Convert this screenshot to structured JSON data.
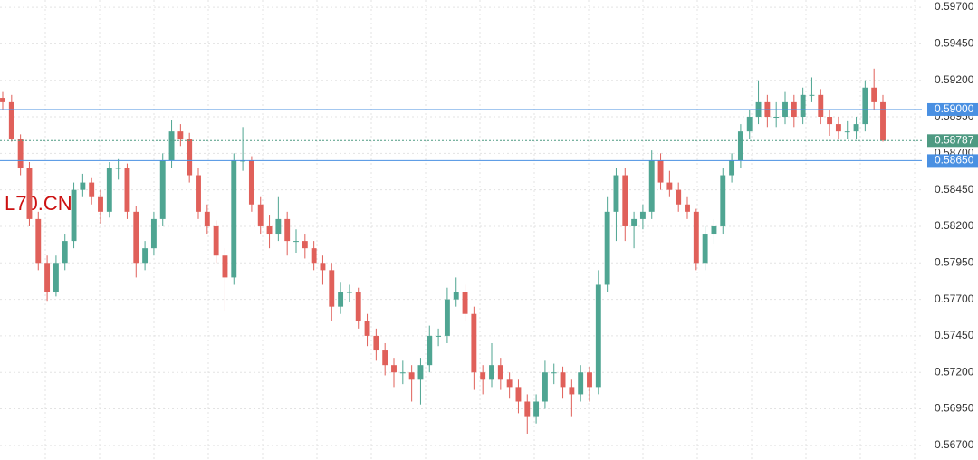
{
  "chart_data": {
    "type": "candlestick",
    "title": "L70.CN",
    "ylim": [
      0.566,
      0.5975
    ],
    "yticks": [
      {
        "value": 0.567,
        "label": "0.56700"
      },
      {
        "value": 0.5695,
        "label": "0.56950"
      },
      {
        "value": 0.572,
        "label": "0.57200"
      },
      {
        "value": 0.5745,
        "label": "0.57450"
      },
      {
        "value": 0.577,
        "label": "0.57700"
      },
      {
        "value": 0.5795,
        "label": "0.57950"
      },
      {
        "value": 0.582,
        "label": "0.58200"
      },
      {
        "value": 0.5845,
        "label": "0.58450"
      },
      {
        "value": 0.587,
        "label": "0.58700"
      },
      {
        "value": 0.5895,
        "label": "0.58950"
      },
      {
        "value": 0.592,
        "label": "0.59200"
      },
      {
        "value": 0.5945,
        "label": "0.59450"
      },
      {
        "value": 0.597,
        "label": "0.59700"
      }
    ],
    "grid": true,
    "up_color": "#4fa592",
    "down_color": "#e0605a",
    "title_color": "#cc1111",
    "price_lines": [
      {
        "value": 0.59,
        "label": "0.59000",
        "color": "#4a90e2"
      },
      {
        "value": 0.5865,
        "label": "0.58650",
        "color": "#4a90e2"
      }
    ],
    "last_price": {
      "value": 0.58787,
      "label": "0.58787",
      "color": "#4e9a82"
    },
    "ohlc": [
      [
        0.5908,
        0.5912,
        0.59,
        0.5905
      ],
      [
        0.5905,
        0.591,
        0.5878,
        0.588
      ],
      [
        0.588,
        0.5883,
        0.5855,
        0.586
      ],
      [
        0.586,
        0.5864,
        0.582,
        0.5825
      ],
      [
        0.5825,
        0.583,
        0.579,
        0.5795
      ],
      [
        0.5795,
        0.58,
        0.5769,
        0.5775
      ],
      [
        0.5775,
        0.58,
        0.5772,
        0.5795
      ],
      [
        0.5795,
        0.5815,
        0.579,
        0.581
      ],
      [
        0.581,
        0.585,
        0.5805,
        0.5845
      ],
      [
        0.5845,
        0.5856,
        0.584,
        0.585
      ],
      [
        0.585,
        0.5853,
        0.5835,
        0.584
      ],
      [
        0.584,
        0.5845,
        0.5822,
        0.583
      ],
      [
        0.583,
        0.5864,
        0.5826,
        0.586
      ],
      [
        0.586,
        0.5866,
        0.5852,
        0.586
      ],
      [
        0.586,
        0.5863,
        0.5825,
        0.583
      ],
      [
        0.583,
        0.5834,
        0.5785,
        0.5795
      ],
      [
        0.5795,
        0.581,
        0.579,
        0.5805
      ],
      [
        0.5805,
        0.583,
        0.58,
        0.5825
      ],
      [
        0.5825,
        0.587,
        0.582,
        0.5865
      ],
      [
        0.5865,
        0.5893,
        0.586,
        0.5885
      ],
      [
        0.5885,
        0.589,
        0.5875,
        0.588
      ],
      [
        0.588,
        0.5884,
        0.585,
        0.5855
      ],
      [
        0.5855,
        0.586,
        0.5825,
        0.583
      ],
      [
        0.583,
        0.5835,
        0.5815,
        0.582
      ],
      [
        0.582,
        0.5824,
        0.5795,
        0.58
      ],
      [
        0.58,
        0.5805,
        0.5762,
        0.5785
      ],
      [
        0.5785,
        0.587,
        0.578,
        0.5865
      ],
      [
        0.5865,
        0.5888,
        0.5858,
        0.5865
      ],
      [
        0.5865,
        0.5868,
        0.583,
        0.5835
      ],
      [
        0.5835,
        0.584,
        0.5815,
        0.582
      ],
      [
        0.582,
        0.5828,
        0.5805,
        0.5815
      ],
      [
        0.5815,
        0.584,
        0.581,
        0.5825
      ],
      [
        0.5825,
        0.583,
        0.58,
        0.581
      ],
      [
        0.581,
        0.5818,
        0.5802,
        0.581
      ],
      [
        0.581,
        0.5815,
        0.5798,
        0.5805
      ],
      [
        0.5805,
        0.581,
        0.579,
        0.5795
      ],
      [
        0.5795,
        0.58,
        0.578,
        0.579
      ],
      [
        0.579,
        0.5795,
        0.5755,
        0.5765
      ],
      [
        0.5765,
        0.5782,
        0.576,
        0.5775
      ],
      [
        0.5775,
        0.578,
        0.5768,
        0.5775
      ],
      [
        0.5775,
        0.5778,
        0.575,
        0.5755
      ],
      [
        0.5755,
        0.576,
        0.5738,
        0.5745
      ],
      [
        0.5745,
        0.575,
        0.5728,
        0.5735
      ],
      [
        0.5735,
        0.574,
        0.5718,
        0.5725
      ],
      [
        0.5725,
        0.573,
        0.571,
        0.572
      ],
      [
        0.572,
        0.5728,
        0.5712,
        0.572
      ],
      [
        0.572,
        0.5725,
        0.57,
        0.5715
      ],
      [
        0.5715,
        0.573,
        0.5698,
        0.5725
      ],
      [
        0.5725,
        0.5752,
        0.572,
        0.5745
      ],
      [
        0.5745,
        0.575,
        0.5738,
        0.5745
      ],
      [
        0.5745,
        0.5778,
        0.574,
        0.577
      ],
      [
        0.577,
        0.5785,
        0.5765,
        0.5775
      ],
      [
        0.5775,
        0.578,
        0.5755,
        0.576
      ],
      [
        0.576,
        0.5765,
        0.5708,
        0.572
      ],
      [
        0.572,
        0.5725,
        0.5705,
        0.5715
      ],
      [
        0.5715,
        0.574,
        0.571,
        0.5725
      ],
      [
        0.5725,
        0.573,
        0.5708,
        0.5715
      ],
      [
        0.5715,
        0.572,
        0.5702,
        0.571
      ],
      [
        0.571,
        0.5715,
        0.5692,
        0.57
      ],
      [
        0.57,
        0.5705,
        0.5678,
        0.569
      ],
      [
        0.569,
        0.5705,
        0.5685,
        0.57
      ],
      [
        0.57,
        0.5728,
        0.5695,
        0.572
      ],
      [
        0.572,
        0.5726,
        0.5712,
        0.572
      ],
      [
        0.572,
        0.5724,
        0.5702,
        0.571
      ],
      [
        0.571,
        0.5715,
        0.569,
        0.5705
      ],
      [
        0.5705,
        0.5725,
        0.57,
        0.572
      ],
      [
        0.572,
        0.5724,
        0.57,
        0.571
      ],
      [
        0.571,
        0.579,
        0.5705,
        0.578
      ],
      [
        0.578,
        0.584,
        0.5775,
        0.583
      ],
      [
        0.583,
        0.586,
        0.581,
        0.5855
      ],
      [
        0.5855,
        0.586,
        0.581,
        0.582
      ],
      [
        0.582,
        0.583,
        0.5805,
        0.5825
      ],
      [
        0.5825,
        0.5835,
        0.5818,
        0.583
      ],
      [
        0.583,
        0.5872,
        0.5825,
        0.5865
      ],
      [
        0.5865,
        0.587,
        0.5845,
        0.585
      ],
      [
        0.585,
        0.5858,
        0.584,
        0.5845
      ],
      [
        0.5845,
        0.585,
        0.583,
        0.5835
      ],
      [
        0.5835,
        0.584,
        0.5825,
        0.583
      ],
      [
        0.583,
        0.5832,
        0.579,
        0.5795
      ],
      [
        0.5795,
        0.582,
        0.579,
        0.5815
      ],
      [
        0.5815,
        0.5825,
        0.5808,
        0.582
      ],
      [
        0.582,
        0.586,
        0.5815,
        0.5855
      ],
      [
        0.5855,
        0.587,
        0.585,
        0.5865
      ],
      [
        0.5865,
        0.589,
        0.586,
        0.5885
      ],
      [
        0.5885,
        0.59,
        0.588,
        0.5895
      ],
      [
        0.5895,
        0.592,
        0.589,
        0.5905
      ],
      [
        0.5905,
        0.591,
        0.5888,
        0.5895
      ],
      [
        0.5895,
        0.5905,
        0.5888,
        0.5895
      ],
      [
        0.5895,
        0.5912,
        0.589,
        0.5905
      ],
      [
        0.5905,
        0.591,
        0.5888,
        0.5895
      ],
      [
        0.5895,
        0.5915,
        0.589,
        0.591
      ],
      [
        0.591,
        0.5922,
        0.5905,
        0.591
      ],
      [
        0.591,
        0.5914,
        0.589,
        0.5895
      ],
      [
        0.5895,
        0.59,
        0.5882,
        0.589
      ],
      [
        0.589,
        0.5895,
        0.588,
        0.5885
      ],
      [
        0.5885,
        0.5892,
        0.588,
        0.5885
      ],
      [
        0.5885,
        0.5895,
        0.588,
        0.589
      ],
      [
        0.589,
        0.592,
        0.5885,
        0.5915
      ],
      [
        0.5915,
        0.5928,
        0.59,
        0.5905
      ],
      [
        0.5905,
        0.591,
        0.5878,
        0.58787
      ]
    ]
  }
}
